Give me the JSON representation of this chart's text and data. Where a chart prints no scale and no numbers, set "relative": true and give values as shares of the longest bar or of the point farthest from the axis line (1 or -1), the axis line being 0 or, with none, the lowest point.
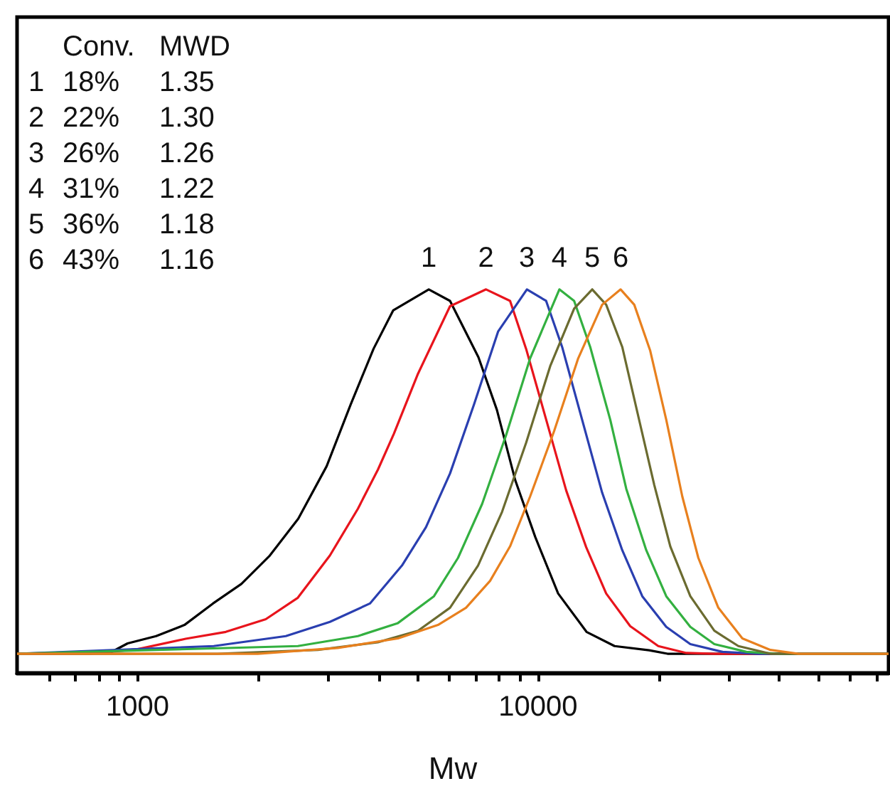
{
  "chart_data": {
    "type": "line",
    "xlabel": "Mw",
    "log": "x",
    "relative": true,
    "xlim": [
      500,
      75000
    ],
    "xticks": [
      {
        "value": 600,
        "label": null
      },
      {
        "value": 700,
        "label": null
      },
      {
        "value": 800,
        "label": null
      },
      {
        "value": 900,
        "label": null
      },
      1000,
      {
        "value": 2000,
        "label": null
      },
      {
        "value": 3000,
        "label": null
      },
      {
        "value": 4000,
        "label": null
      },
      {
        "value": 5000,
        "label": null
      },
      {
        "value": 6000,
        "label": null
      },
      {
        "value": 7000,
        "label": null
      },
      {
        "value": 8000,
        "label": null
      },
      {
        "value": 9000,
        "label": null
      },
      10000,
      {
        "value": 20000,
        "label": null
      },
      {
        "value": 30000,
        "label": null
      },
      {
        "value": 40000,
        "label": null
      },
      {
        "value": 50000,
        "label": null
      },
      {
        "value": 60000,
        "label": null
      },
      {
        "value": 70000,
        "label": null
      }
    ],
    "grid": false,
    "legend": false,
    "marker": "none",
    "line_style": "solid",
    "tick_labels": "x",
    "annotations": [
      "Conv.",
      "MWD",
      "1",
      "18%",
      "1.35",
      "2",
      "22%",
      "1.30",
      "3",
      "26%",
      "1.26",
      "4",
      "31%",
      "1.22",
      "5",
      "36%",
      "1.18",
      "6",
      "43%",
      "1.16"
    ],
    "series": [
      {
        "name": "1",
        "color": "#000000",
        "x": [
          500,
          851,
          944,
          1112,
          1309,
          1542,
          1816,
          2138,
          2518,
          2965,
          3404,
          3882,
          4345,
          5333,
          6026,
          7096,
          7889,
          8770,
          9840,
          11220,
          13210,
          15520,
          18920,
          21040,
          75000
        ],
        "values": [
          0.05,
          0.052,
          0.077,
          0.096,
          0.125,
          0.181,
          0.232,
          0.306,
          0.402,
          0.539,
          0.7,
          0.845,
          0.945,
          1,
          0.97,
          0.823,
          0.686,
          0.502,
          0.354,
          0.207,
          0.107,
          0.07,
          0.059,
          0.05,
          0.05
        ]
      },
      {
        "name": "2",
        "color": "#e8141c",
        "x": [
          500,
          759,
          1000,
          1318,
          1660,
          2089,
          2512,
          3020,
          3548,
          3981,
          4365,
          5012,
          6026,
          7413,
          8511,
          9333,
          10470,
          11750,
          13180,
          14790,
          16980,
          19950,
          23440,
          27540,
          75000
        ],
        "values": [
          0.05,
          0.05,
          0.062,
          0.089,
          0.107,
          0.14,
          0.196,
          0.306,
          0.428,
          0.53,
          0.624,
          0.78,
          0.956,
          1,
          0.97,
          0.845,
          0.661,
          0.476,
          0.328,
          0.207,
          0.122,
          0.07,
          0.052,
          0.05,
          0.05
        ]
      },
      {
        "name": "3",
        "color": "#2a3fb0",
        "x": [
          500,
          1549,
          2344,
          3020,
          3802,
          4571,
          5248,
          6026,
          6918,
          7943,
          9376,
          10470,
          11480,
          12880,
          14450,
          16220,
          18200,
          20890,
          23990,
          28840,
          35480,
          75000
        ],
        "values": [
          0.05,
          0.07,
          0.096,
          0.133,
          0.181,
          0.28,
          0.38,
          0.52,
          0.7,
          0.89,
          1,
          0.97,
          0.85,
          0.66,
          0.47,
          0.32,
          0.2,
          0.12,
          0.075,
          0.055,
          0.05,
          0.05
        ]
      },
      {
        "name": "4",
        "color": "#33b040",
        "x": [
          500,
          2512,
          3548,
          4467,
          5495,
          6310,
          7244,
          8318,
          9550,
          11300,
          12300,
          13490,
          15140,
          16600,
          18620,
          20890,
          23990,
          27540,
          33110,
          39810,
          75000
        ],
        "values": [
          0.05,
          0.07,
          0.096,
          0.13,
          0.2,
          0.3,
          0.44,
          0.62,
          0.82,
          1,
          0.97,
          0.85,
          0.66,
          0.48,
          0.32,
          0.2,
          0.12,
          0.075,
          0.055,
          0.05,
          0.05
        ]
      },
      {
        "name": "5",
        "color": "#6b6b30",
        "x": [
          500,
          1585,
          2818,
          3981,
          5012,
          6026,
          7079,
          8128,
          9333,
          10720,
          12300,
          13650,
          14790,
          16220,
          17780,
          19500,
          21380,
          23990,
          27540,
          31620,
          38020,
          75000
        ],
        "values": [
          0.05,
          0.05,
          0.06,
          0.08,
          0.11,
          0.17,
          0.28,
          0.42,
          0.6,
          0.8,
          0.95,
          1,
          0.96,
          0.85,
          0.67,
          0.49,
          0.33,
          0.2,
          0.11,
          0.07,
          0.05,
          0.05
        ]
      },
      {
        "name": "6",
        "color": "#e8801e",
        "x": [
          500,
          1995,
          3162,
          4467,
          5623,
          6607,
          7586,
          8511,
          9550,
          10960,
          12590,
          14450,
          16070,
          17380,
          19050,
          20890,
          22910,
          25120,
          28180,
          32360,
          38020,
          44670,
          75000
        ],
        "values": [
          0.05,
          0.05,
          0.065,
          0.09,
          0.125,
          0.17,
          0.24,
          0.33,
          0.46,
          0.63,
          0.82,
          0.96,
          1,
          0.96,
          0.84,
          0.66,
          0.46,
          0.3,
          0.17,
          0.09,
          0.06,
          0.05,
          0.05
        ]
      }
    ]
  }
}
